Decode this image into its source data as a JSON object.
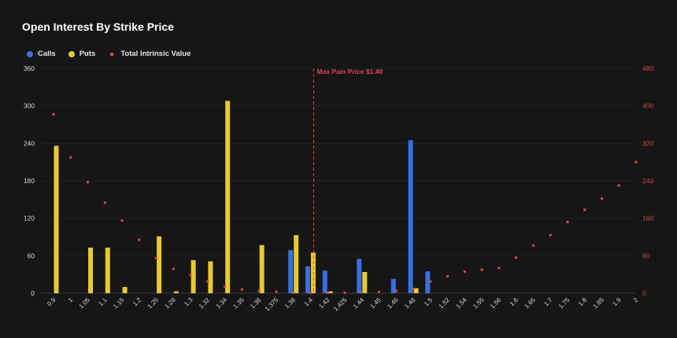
{
  "chart_data": {
    "type": "bar",
    "title": "Open Interest By Strike Price",
    "categories": [
      "0.9",
      "1",
      "1.05",
      "1.1",
      "1.15",
      "1.2",
      "1.25",
      "1.28",
      "1.3",
      "1.32",
      "1.34",
      "1.35",
      "1.36",
      "1.375",
      "1.38",
      "1.4",
      "1.42",
      "1.425",
      "1.44",
      "1.45",
      "1.46",
      "1.48",
      "1.5",
      "1.52",
      "1.54",
      "1.55",
      "1.56",
      "1.6",
      "1.65",
      "1.7",
      "1.75",
      "1.8",
      "1.85",
      "1.9",
      "2"
    ],
    "series": [
      {
        "name": "Calls",
        "type": "bar",
        "axis": "left",
        "color": "#3b6fe0",
        "values": [
          0,
          0,
          0,
          0,
          0,
          0,
          0,
          0,
          0,
          0,
          0,
          0,
          0,
          0,
          69,
          43,
          36,
          0,
          55,
          0,
          23,
          245,
          35,
          0,
          0,
          0,
          0,
          0,
          0,
          0,
          0,
          0,
          0,
          0,
          0
        ]
      },
      {
        "name": "Puts",
        "type": "bar",
        "axis": "left",
        "color": "#e8c930",
        "values": [
          236,
          0,
          73,
          73,
          10,
          0,
          91,
          3,
          53,
          51,
          308,
          0,
          77,
          0,
          93,
          65,
          3,
          0,
          34,
          0,
          0,
          8,
          0,
          0,
          0,
          0,
          0,
          0,
          0,
          0,
          0,
          0,
          0,
          0,
          0
        ]
      },
      {
        "name": "Total Intrinsic Value",
        "type": "scatter",
        "axis": "right",
        "color": "#e04848",
        "values": [
          382,
          290,
          237,
          193,
          155,
          114,
          75,
          52,
          38,
          25,
          14,
          8,
          5,
          3,
          1,
          1,
          1,
          1,
          2,
          3,
          5,
          9,
          25,
          36,
          46,
          50,
          54,
          76,
          102,
          124,
          152,
          178,
          202,
          230,
          280
        ]
      }
    ],
    "y_left": {
      "min": 0,
      "max": 360,
      "ticks": [
        0,
        60,
        120,
        180,
        240,
        300,
        360
      ]
    },
    "y_right": {
      "min": 0,
      "max": 480,
      "ticks": [
        0,
        80,
        160,
        240,
        320,
        400,
        480
      ]
    },
    "annotation": {
      "label": "Max Pain Price $1.40",
      "category": "1.4",
      "color": "#e04848"
    },
    "legend_position": "top-left",
    "grid": true
  }
}
